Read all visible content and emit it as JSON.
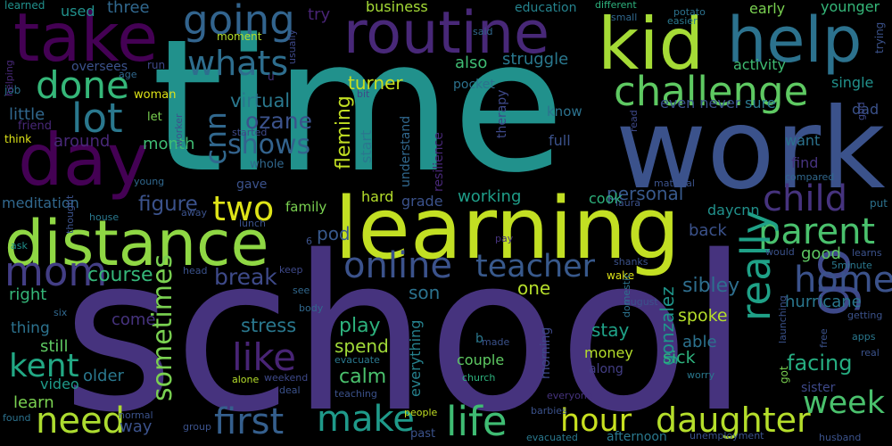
{
  "background": "#000000",
  "words": [
    {
      "text": "time",
      "color": "#21918c"
    },
    {
      "text": "school",
      "color": "#46337e"
    },
    {
      "text": "work",
      "color": "#3b528b"
    },
    {
      "text": "learning",
      "color": "#c2df23"
    },
    {
      "text": "distance",
      "color": "#8fd744"
    },
    {
      "text": "take",
      "color": "#440154"
    },
    {
      "text": "routine",
      "color": "#482878"
    },
    {
      "text": "kid",
      "color": "#a5db36"
    },
    {
      "text": "help",
      "color": "#2c728e"
    },
    {
      "text": "day",
      "color": "#440154"
    },
    {
      "text": "going",
      "color": "#32648e"
    },
    {
      "text": "challenge",
      "color": "#5ec962"
    },
    {
      "text": "whats",
      "color": "#2e6e8e"
    },
    {
      "text": "done",
      "color": "#35b779"
    },
    {
      "text": "lot",
      "color": "#2a788e"
    },
    {
      "text": "mom",
      "color": "#433e85"
    },
    {
      "text": "go",
      "color": "#3e4989"
    },
    {
      "text": "life",
      "color": "#3fbc73"
    },
    {
      "text": "make",
      "color": "#1f9a8a"
    },
    {
      "text": "parent",
      "color": "#4ac16d"
    },
    {
      "text": "home",
      "color": "#3b528b"
    },
    {
      "text": "child",
      "color": "#46337e"
    },
    {
      "text": "online",
      "color": "#3b528b"
    },
    {
      "text": "teacher",
      "color": "#38598c"
    },
    {
      "text": "daughter",
      "color": "#b5de2b"
    },
    {
      "text": "hour",
      "color": "#c8e020"
    },
    {
      "text": "week",
      "color": "#4ac16d"
    },
    {
      "text": "first",
      "color": "#355f8d"
    },
    {
      "text": "need",
      "color": "#addc30"
    },
    {
      "text": "kent",
      "color": "#22a884"
    },
    {
      "text": "really",
      "color": "#1fa187"
    },
    {
      "text": "like",
      "color": "#482475"
    },
    {
      "text": "two",
      "color": "#dde318"
    },
    {
      "text": "cnn",
      "color": "#31688e"
    },
    {
      "text": "shows",
      "color": "#33638d"
    },
    {
      "text": "sometimes",
      "color": "#7ad151"
    },
    {
      "text": "ozane",
      "color": "#3b528b"
    },
    {
      "text": "virtual",
      "color": "#2a788e"
    },
    {
      "text": "fleming",
      "color": "#c2df23"
    },
    {
      "text": "break",
      "color": "#3e4a89"
    },
    {
      "text": "figure",
      "color": "#3b528b"
    },
    {
      "text": "course",
      "color": "#35b779"
    },
    {
      "text": "stress",
      "color": "#2a788e"
    },
    {
      "text": "calm",
      "color": "#4ac16d"
    },
    {
      "text": "spend",
      "color": "#a0da39"
    },
    {
      "text": "play",
      "color": "#2db27d"
    },
    {
      "text": "pod",
      "color": "#38598c"
    },
    {
      "text": "son",
      "color": "#2c728e"
    },
    {
      "text": "one",
      "color": "#b5de2b"
    },
    {
      "text": "sibley",
      "color": "#2e6e8e"
    },
    {
      "text": "gonzalez",
      "color": "#1f968b"
    },
    {
      "text": "spoke",
      "color": "#b5de2b"
    },
    {
      "text": "stay",
      "color": "#1fa187"
    },
    {
      "text": "sick",
      "color": "#2db27d"
    },
    {
      "text": "able",
      "color": "#2c728e"
    },
    {
      "text": "facing",
      "color": "#26ad81"
    },
    {
      "text": "hurricane",
      "color": "#2a778e"
    },
    {
      "text": "good",
      "color": "#5ec962"
    },
    {
      "text": "sister",
      "color": "#3e4989"
    },
    {
      "text": "money",
      "color": "#b5de2b"
    },
    {
      "text": "couple",
      "color": "#5ec962"
    },
    {
      "text": "everything",
      "color": "#26828e"
    },
    {
      "text": "morning",
      "color": "#3e4989"
    },
    {
      "text": "afternoon",
      "color": "#2a788e"
    },
    {
      "text": "along",
      "color": "#433e85"
    },
    {
      "text": "learn",
      "color": "#7ad151"
    },
    {
      "text": "video",
      "color": "#1f9a8a"
    },
    {
      "text": "still",
      "color": "#5ec962"
    },
    {
      "text": "thing",
      "color": "#2c728e"
    },
    {
      "text": "older",
      "color": "#2a788e"
    },
    {
      "text": "come",
      "color": "#46337e"
    },
    {
      "text": "way",
      "color": "#3b528b"
    },
    {
      "text": "right",
      "color": "#35b779"
    },
    {
      "text": "meditation",
      "color": "#31688e"
    },
    {
      "text": "little",
      "color": "#31688e"
    },
    {
      "text": "around",
      "color": "#482878"
    },
    {
      "text": "month",
      "color": "#3fbc73"
    },
    {
      "text": "turner",
      "color": "#c8e020"
    },
    {
      "text": "struggle",
      "color": "#2a788e"
    },
    {
      "text": "also",
      "color": "#3fbc73"
    },
    {
      "text": "business",
      "color": "#a5db36"
    },
    {
      "text": "education",
      "color": "#25838e"
    },
    {
      "text": "three",
      "color": "#31688e"
    },
    {
      "text": "used",
      "color": "#21918c"
    },
    {
      "text": "try",
      "color": "#482475"
    },
    {
      "text": "early",
      "color": "#7ad151"
    },
    {
      "text": "younger",
      "color": "#35b779"
    },
    {
      "text": "activity",
      "color": "#3fbc73"
    },
    {
      "text": "single",
      "color": "#21918c"
    },
    {
      "text": "sure",
      "color": "#2a788e"
    },
    {
      "text": "dad",
      "color": "#3b528b"
    },
    {
      "text": "want",
      "color": "#2c728e"
    },
    {
      "text": "find",
      "color": "#46337e"
    },
    {
      "text": "know",
      "color": "#2c728e"
    },
    {
      "text": "start",
      "color": "#2a778e"
    },
    {
      "text": "full",
      "color": "#3b528b"
    },
    {
      "text": "personal",
      "color": "#38598c"
    },
    {
      "text": "cook",
      "color": "#2db27d"
    },
    {
      "text": "working",
      "color": "#1f9e89"
    },
    {
      "text": "grade",
      "color": "#3b528b"
    },
    {
      "text": "hard",
      "color": "#b5de2b"
    },
    {
      "text": "family",
      "color": "#7ad151"
    },
    {
      "text": "daycnn",
      "color": "#21918c"
    },
    {
      "text": "back",
      "color": "#3b528b"
    },
    {
      "text": "understand",
      "color": "#31688e"
    },
    {
      "text": "resilience",
      "color": "#482878"
    },
    {
      "text": "therapy",
      "color": "#3e4989"
    },
    {
      "text": "even never",
      "color": "#3b528b"
    },
    {
      "text": "gave",
      "color": "#3b528b"
    },
    {
      "text": "whole",
      "color": "#31688e"
    },
    {
      "text": "oversees",
      "color": "#3b528b"
    },
    {
      "text": "pocket",
      "color": "#2c728e"
    },
    {
      "text": "run",
      "color": "#3e4989"
    },
    {
      "text": "age",
      "color": "#31688e"
    },
    {
      "text": "woman",
      "color": "#dde318"
    },
    {
      "text": "let",
      "color": "#7ad151"
    },
    {
      "text": "friend",
      "color": "#482878"
    },
    {
      "text": "job",
      "color": "#2c728e"
    },
    {
      "text": "think",
      "color": "#dde318"
    },
    {
      "text": "learned",
      "color": "#21918c"
    },
    {
      "text": "moment",
      "color": "#b5de2b"
    },
    {
      "text": "usually",
      "color": "#3e4989"
    },
    {
      "text": "said",
      "color": "#31688e"
    },
    {
      "text": "different",
      "color": "#2db27d"
    },
    {
      "text": "small",
      "color": "#31688e"
    },
    {
      "text": "potato",
      "color": "#2c728e"
    },
    {
      "text": "easier",
      "color": "#2a788e"
    },
    {
      "text": "trying",
      "color": "#3b528b"
    },
    {
      "text": "bit",
      "color": "#3e4989"
    },
    {
      "text": "u",
      "color": "#46337e"
    },
    {
      "text": "helping",
      "color": "#482878"
    },
    {
      "text": "worker",
      "color": "#3b528b"
    },
    {
      "text": "started",
      "color": "#3e4989"
    },
    {
      "text": "young",
      "color": "#31688e"
    },
    {
      "text": "material",
      "color": "#3b528b"
    },
    {
      "text": "laura",
      "color": "#3b528b"
    },
    {
      "text": "put",
      "color": "#2c728e"
    },
    {
      "text": "god",
      "color": "#3e4989"
    },
    {
      "text": "compared",
      "color": "#31688e"
    },
    {
      "text": "house",
      "color": "#2a788e"
    },
    {
      "text": "away",
      "color": "#3b528b"
    },
    {
      "text": "lunch",
      "color": "#3b528b"
    },
    {
      "text": "thought",
      "color": "#3b528b"
    },
    {
      "text": "ask",
      "color": "#21918c"
    },
    {
      "text": "head",
      "color": "#3b528b"
    },
    {
      "text": "keep",
      "color": "#3e4989"
    },
    {
      "text": "see",
      "color": "#31688e"
    },
    {
      "text": "body",
      "color": "#31688e"
    },
    {
      "text": "six",
      "color": "#31688e"
    },
    {
      "text": "pay",
      "color": "#46337e"
    },
    {
      "text": "shanks",
      "color": "#3b528b"
    },
    {
      "text": "wake",
      "color": "#dde318"
    },
    {
      "text": "would",
      "color": "#3b528b"
    },
    {
      "text": "learns",
      "color": "#3b528b"
    },
    {
      "text": "5minute",
      "color": "#2a788e"
    },
    {
      "text": "august",
      "color": "#3b528b"
    },
    {
      "text": "domestic",
      "color": "#2c728e"
    },
    {
      "text": "launching",
      "color": "#3b528b"
    },
    {
      "text": "getting",
      "color": "#3b528b"
    },
    {
      "text": "apps",
      "color": "#2a788e"
    },
    {
      "text": "real",
      "color": "#3b528b"
    },
    {
      "text": "made",
      "color": "#3b528b"
    },
    {
      "text": "church",
      "color": "#2db27d"
    },
    {
      "text": "evacuate",
      "color": "#2a788e"
    },
    {
      "text": "teaching",
      "color": "#3b528b"
    },
    {
      "text": "weekend",
      "color": "#3e4989"
    },
    {
      "text": "deal",
      "color": "#3b528b"
    },
    {
      "text": "alone",
      "color": "#b5de2b"
    },
    {
      "text": "normal",
      "color": "#3b528b"
    },
    {
      "text": "group",
      "color": "#3b528b"
    },
    {
      "text": "found",
      "color": "#2c728e"
    },
    {
      "text": "people",
      "color": "#c2df23"
    },
    {
      "text": "past",
      "color": "#3b528b"
    },
    {
      "text": "everyone",
      "color": "#46337e"
    },
    {
      "text": "barbies",
      "color": "#3b528b"
    },
    {
      "text": "evacuated",
      "color": "#2a788e"
    },
    {
      "text": "unemployment",
      "color": "#3b528b"
    },
    {
      "text": "husband",
      "color": "#3b528b"
    },
    {
      "text": "worry",
      "color": "#2a788e"
    },
    {
      "text": "free",
      "color": "#3b528b"
    },
    {
      "text": "got",
      "color": "#7ad151"
    },
    {
      "text": "b",
      "color": "#2a788e"
    },
    {
      "text": "6",
      "color": "#3b528b"
    },
    {
      "text": "read",
      "color": "#3e4989"
    }
  ]
}
